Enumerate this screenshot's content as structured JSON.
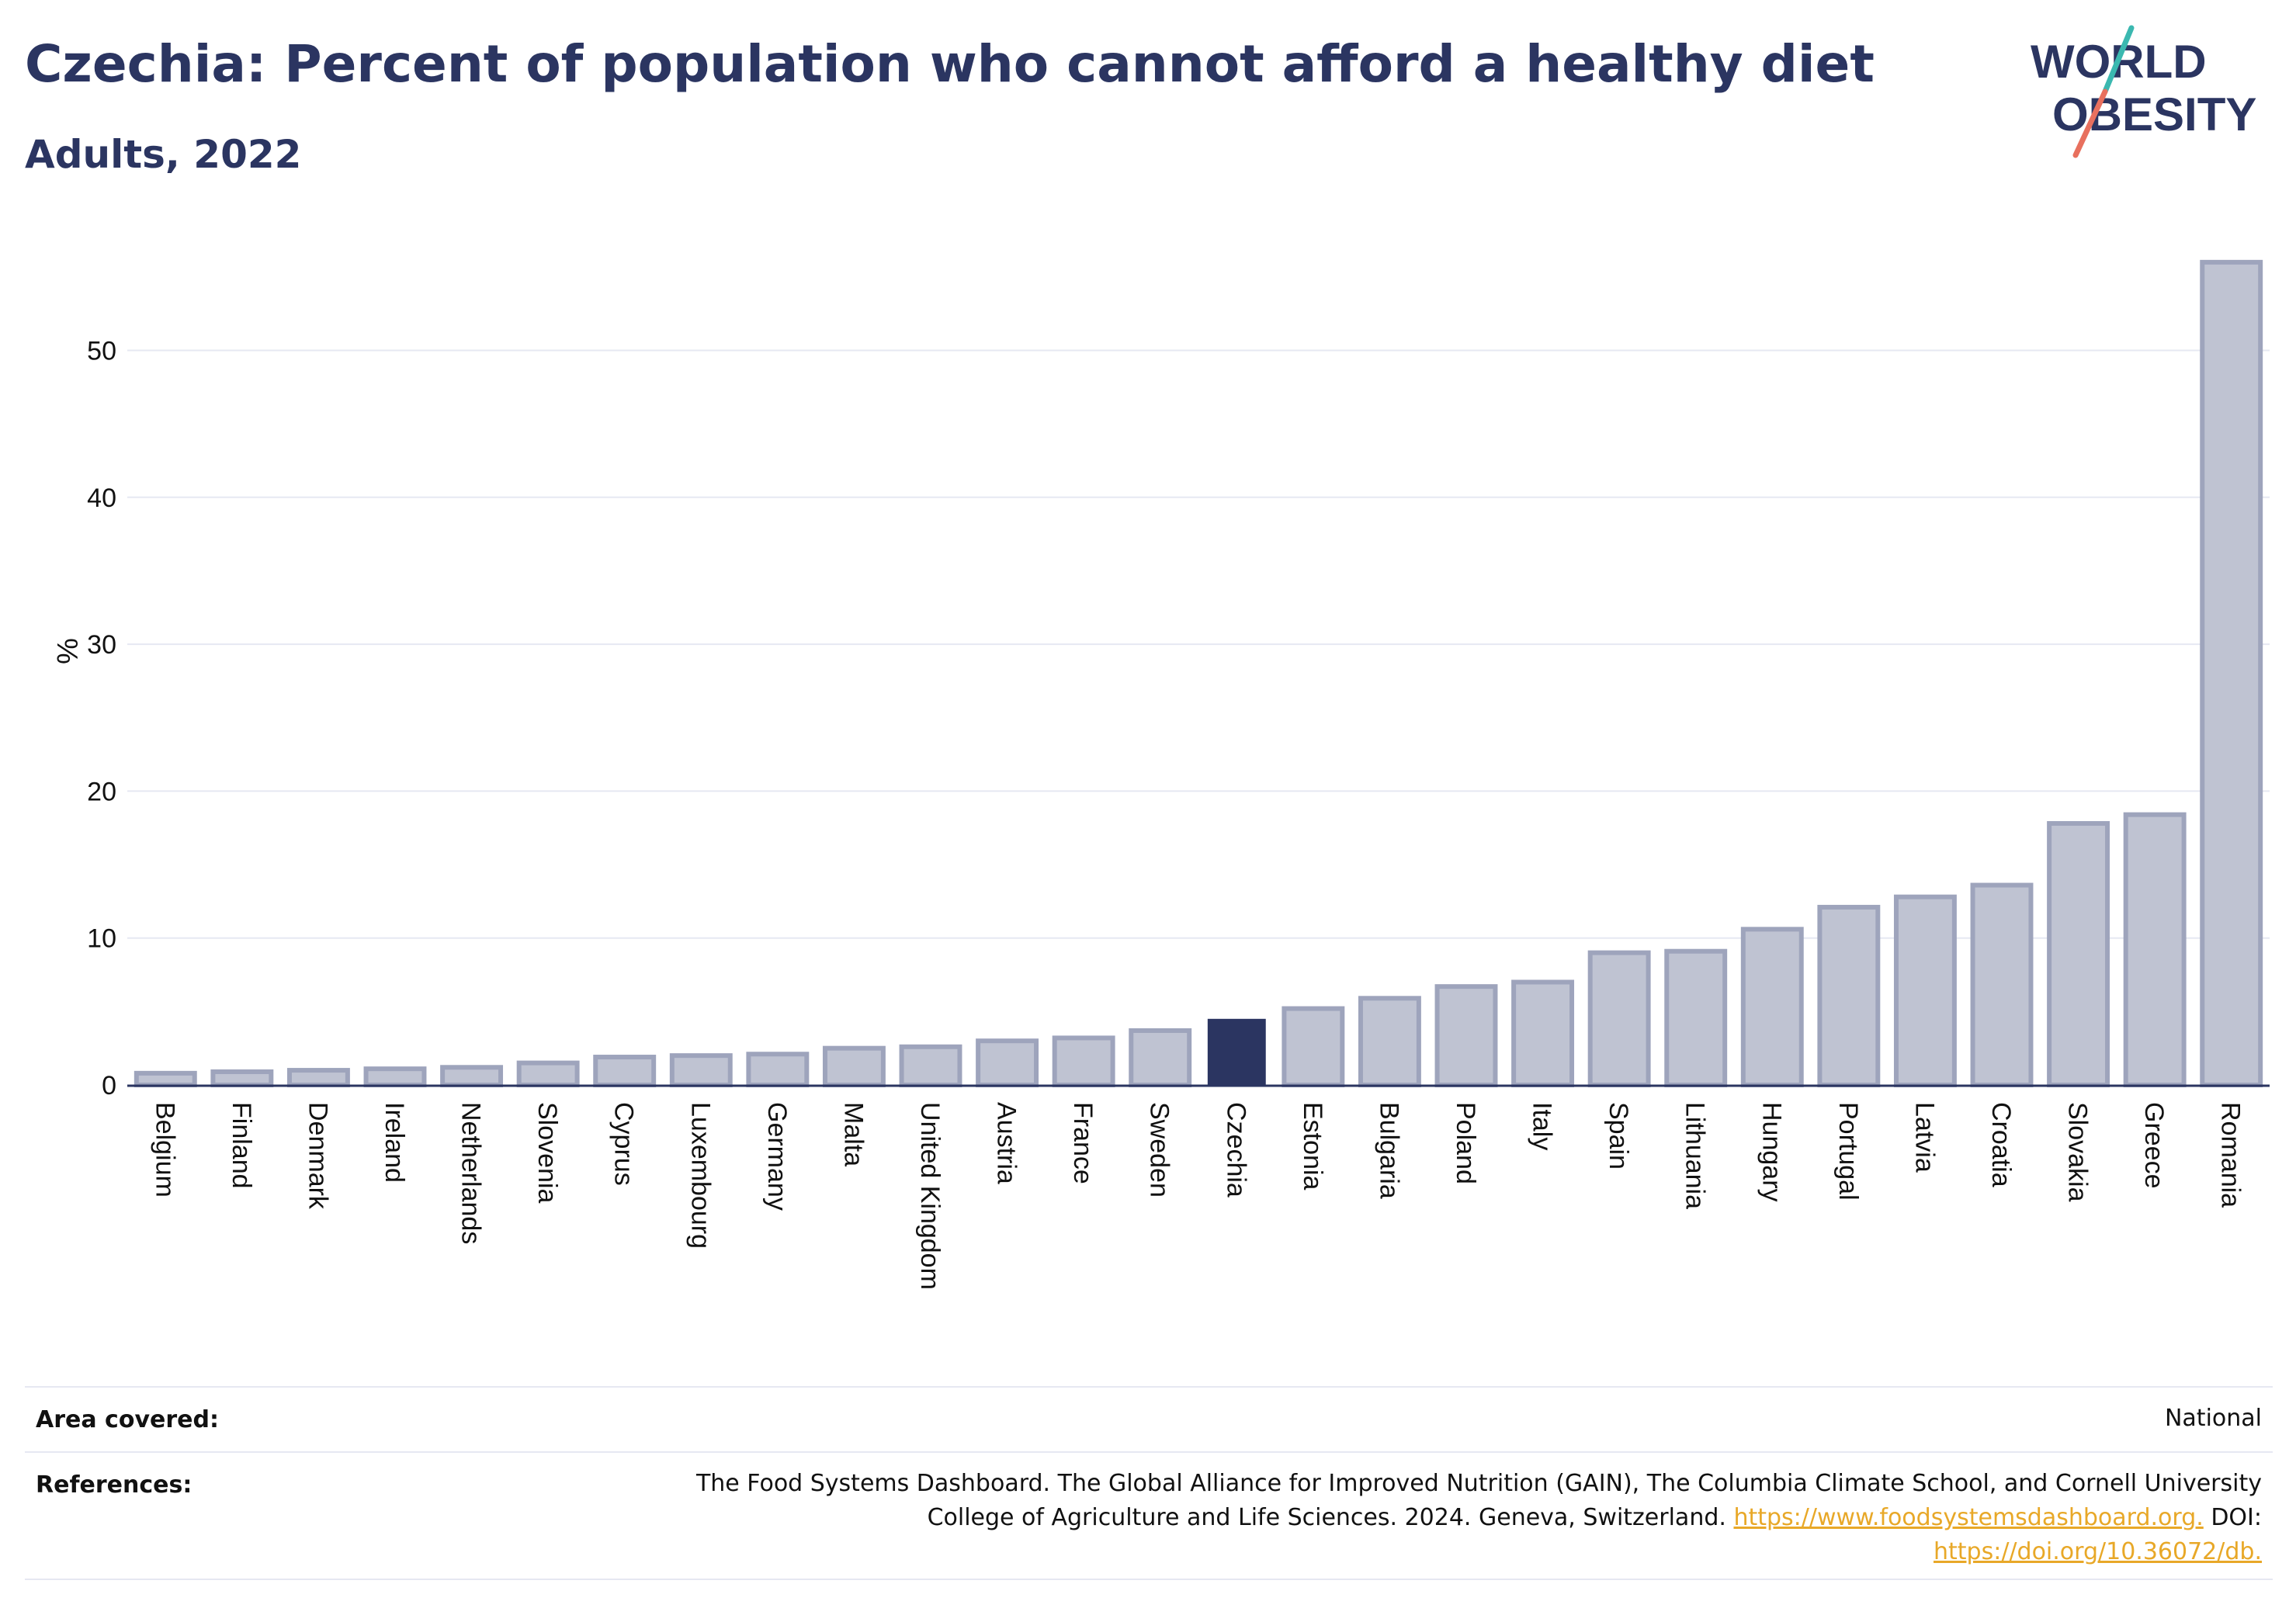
{
  "header": {
    "title": "Czechia: Percent of population who cannot afford a healthy diet",
    "subtitle": "Adults, 2022"
  },
  "logo": {
    "line1": "WORLD",
    "line2": "OBESITY",
    "colors": {
      "text": "#2b3561",
      "slash_teal": "#3bb8b0",
      "slash_coral": "#e8705e"
    }
  },
  "colors": {
    "highlight_bar": "#2b3561",
    "other_bar_fill": "#bfc3d2",
    "other_bar_stroke": "#9ea4bc",
    "grid": "#e6e8f2",
    "axis": "#2b3561",
    "link": "#e8a828"
  },
  "chart_data": {
    "type": "bar",
    "title": "Czechia: Percent of population who cannot afford a healthy diet",
    "subtitle": "Adults, 2022",
    "xlabel": "",
    "ylabel": "%",
    "ylim": [
      0,
      58
    ],
    "yticks": [
      0,
      10,
      20,
      30,
      40,
      50
    ],
    "grid": true,
    "highlight": "Czechia",
    "categories": [
      "Belgium",
      "Finland",
      "Denmark",
      "Ireland",
      "Netherlands",
      "Slovenia",
      "Cyprus",
      "Luxembourg",
      "Germany",
      "Malta",
      "United Kingdom",
      "Austria",
      "France",
      "Sweden",
      "Czechia",
      "Estonia",
      "Bulgaria",
      "Poland",
      "Italy",
      "Spain",
      "Lithuania",
      "Hungary",
      "Portugal",
      "Latvia",
      "Croatia",
      "Slovakia",
      "Greece",
      "Romania"
    ],
    "values": [
      0.8,
      0.9,
      1.0,
      1.1,
      1.2,
      1.5,
      1.9,
      2.0,
      2.1,
      2.5,
      2.6,
      3.0,
      3.2,
      3.7,
      4.5,
      5.2,
      5.9,
      6.7,
      7.0,
      9.0,
      9.1,
      10.6,
      12.1,
      12.8,
      13.6,
      17.8,
      18.4,
      56.0
    ]
  },
  "footer": {
    "area_label": "Area covered:",
    "area_value": "National",
    "references_label": "References:",
    "references_line1": "The Food Systems Dashboard. The Global Alliance for Improved Nutrition (GAIN), The Columbia Climate School, and Cornell University",
    "references_line2_text": "College of Agriculture and Life Sciences. 2024. Geneva, Switzerland.",
    "references_link1": "https://www.foodsystemsdashboard.org.",
    "references_doi_label": "DOI:",
    "references_link2": "https://doi.org/10.36072/db."
  }
}
